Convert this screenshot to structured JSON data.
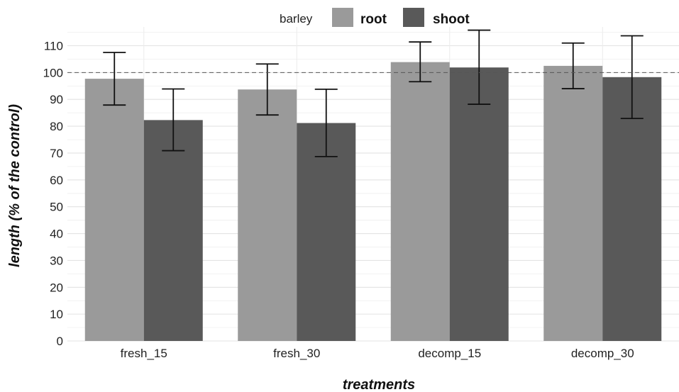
{
  "chart_data": {
    "type": "bar",
    "legend_title": "barley",
    "legend_position": "top",
    "categories": [
      "fresh_15",
      "fresh_30",
      "decomp_15",
      "decomp_30"
    ],
    "series": [
      {
        "name": "root",
        "color": "#9a9a9a",
        "values": [
          97.7,
          93.7,
          103.9,
          102.5
        ],
        "err_low": [
          87.9,
          84.2,
          96.6,
          94.0
        ],
        "err_high": [
          107.5,
          103.2,
          111.4,
          111.0
        ]
      },
      {
        "name": "shoot",
        "color": "#595959",
        "values": [
          82.3,
          81.2,
          101.9,
          98.3
        ],
        "err_low": [
          70.9,
          68.7,
          88.2,
          82.9
        ],
        "err_high": [
          93.9,
          93.8,
          115.8,
          113.7
        ]
      }
    ],
    "reference_line": 100,
    "xlabel": "treatments",
    "ylabel": "length (% of the control)",
    "ylim": [
      0,
      117
    ],
    "yticks": [
      0,
      10,
      20,
      30,
      40,
      50,
      60,
      70,
      80,
      90,
      100,
      110
    ],
    "grid": true
  }
}
